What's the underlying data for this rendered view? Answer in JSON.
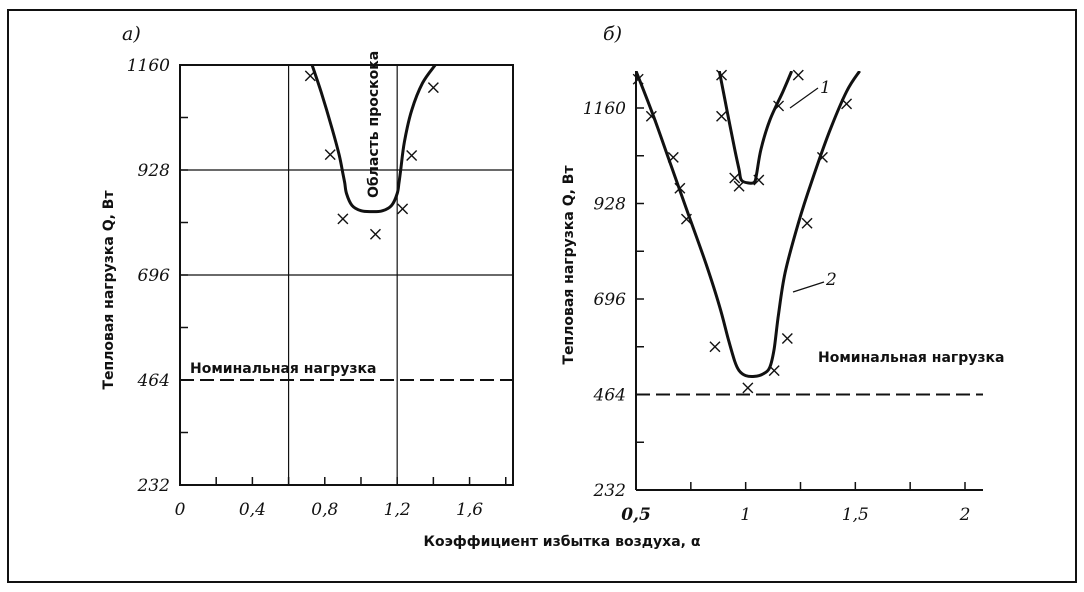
{
  "xlabel": "Коэффициент избытка воздуха, α",
  "chart_data": [
    {
      "type": "line",
      "panel_label": "а)",
      "ylabel": "Тепловая нагрузка Q, Вт",
      "xlim": [
        0,
        1.84
      ],
      "ylim": [
        232,
        1160
      ],
      "x_ticks": [
        0,
        0.4,
        0.8,
        1.2,
        1.6
      ],
      "x_tick_labels": [
        "0",
        "0,4",
        "0,8",
        "1,2",
        "1,6"
      ],
      "y_ticks": [
        232,
        464,
        696,
        928,
        1160
      ],
      "y_tick_labels": [
        "232",
        "464",
        "696",
        "928",
        "1160"
      ],
      "grid": true,
      "curve_label": "Область проскока",
      "reference_label": "Номинальная нагрузка",
      "reference_value": 464,
      "series": [
        {
          "x": [
            0.73,
            0.78,
            0.84,
            0.88,
            0.9,
            0.91,
            0.92,
            0.95,
            1.0,
            1.06,
            1.12,
            1.17,
            1.2,
            1.21,
            1.22,
            1.24,
            1.28,
            1.34,
            1.41
          ],
          "y": [
            1160,
            1100,
            1020,
            960,
            920,
            900,
            876,
            850,
            838,
            836,
            838,
            850,
            876,
            900,
            930,
            990,
            1060,
            1120,
            1160
          ]
        }
      ],
      "markers": {
        "x": [
          0.72,
          0.83,
          0.9,
          1.08,
          1.23,
          1.28,
          1.4
        ],
        "y": [
          1136,
          962,
          820,
          786,
          842,
          960,
          1110
        ]
      }
    },
    {
      "type": "line",
      "panel_label": "б)",
      "ylabel": "Тепловая нагрузка Q, Вт",
      "xlim": [
        0.5,
        2.05
      ],
      "ylim": [
        232,
        1250
      ],
      "x_ticks": [
        0.5,
        1,
        1.5,
        2
      ],
      "x_tick_labels": [
        "0,5",
        "1",
        "1,5",
        "2"
      ],
      "y_ticks": [
        232,
        464,
        696,
        928,
        1160
      ],
      "y_tick_labels": [
        "232",
        "464",
        "696",
        "928",
        "1160"
      ],
      "grid": false,
      "reference_label": "Номинальная нагрузка",
      "reference_value": 464,
      "series": [
        {
          "name": "1",
          "x": [
            0.88,
            0.92,
            0.95,
            0.97,
            0.98,
            1.01,
            1.04,
            1.05,
            1.07,
            1.11,
            1.17,
            1.21
          ],
          "y": [
            1250,
            1140,
            1060,
            1010,
            985,
            978,
            980,
            1000,
            1060,
            1130,
            1200,
            1250
          ]
        },
        {
          "name": "2",
          "x": [
            0.5,
            0.58,
            0.66,
            0.74,
            0.82,
            0.88,
            0.92,
            0.95,
            0.97,
            1.0,
            1.04,
            1.08,
            1.11,
            1.13,
            1.15,
            1.18,
            1.24,
            1.3,
            1.38,
            1.46,
            1.52
          ],
          "y": [
            1250,
            1140,
            1020,
            900,
            780,
            680,
            600,
            545,
            522,
            510,
            508,
            514,
            530,
            575,
            660,
            760,
            880,
            980,
            1100,
            1200,
            1250
          ]
        }
      ],
      "series_labels": [
        "1",
        "2"
      ],
      "markers": {
        "x": [
          0.51,
          0.57,
          0.67,
          0.7,
          0.73,
          0.86,
          0.89,
          0.89,
          0.95,
          0.97,
          1.01,
          1.06,
          1.13,
          1.15,
          1.19,
          1.24,
          1.28,
          1.35,
          1.46
        ],
        "y": [
          1230,
          1140,
          1040,
          965,
          890,
          580,
          1240,
          1140,
          990,
          970,
          480,
          985,
          522,
          1165,
          600,
          1240,
          880,
          1040,
          1170
        ]
      }
    }
  ]
}
